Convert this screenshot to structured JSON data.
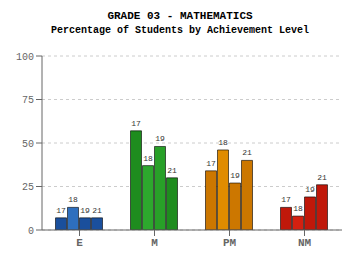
{
  "chart_data": {
    "type": "bar",
    "title": "GRADE 03 - MATHEMATICS",
    "subtitle": "Percentage of Students by Achievement Level",
    "categories": [
      "E",
      "M",
      "PM",
      "NM"
    ],
    "series": [
      {
        "name": "17",
        "colors": [
          "#1a4f9c",
          "#1e8c1e",
          "#cc7700",
          "#c0180a"
        ],
        "values": [
          7,
          57,
          34,
          13
        ]
      },
      {
        "name": "18",
        "colors": [
          "#2e6fbe",
          "#2da82d",
          "#e08c00",
          "#d42010"
        ],
        "values": [
          13,
          37,
          46,
          8
        ]
      },
      {
        "name": "19",
        "colors": [
          "#1a4f9c",
          "#28a028",
          "#cc7700",
          "#c0180a"
        ],
        "values": [
          7,
          48,
          27,
          19
        ]
      },
      {
        "name": "21",
        "colors": [
          "#1a4f9c",
          "#1e8c1e",
          "#cc7700",
          "#c0180a"
        ],
        "values": [
          7,
          30,
          40,
          26
        ]
      }
    ],
    "ylim": [
      0,
      100
    ],
    "yticks": [
      0,
      25,
      50,
      75,
      100
    ],
    "grid": true
  }
}
